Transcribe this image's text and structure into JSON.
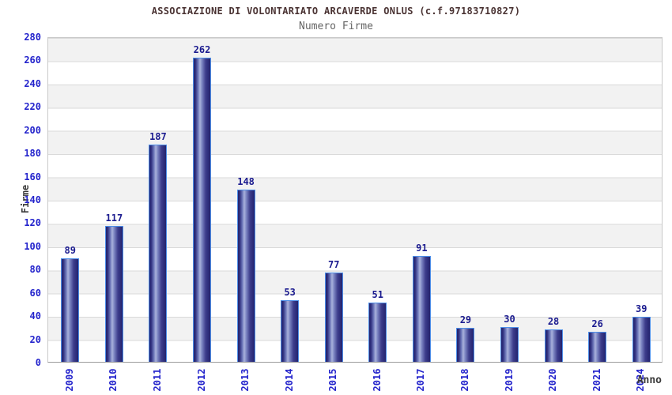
{
  "chart_data": {
    "type": "bar",
    "title": "ASSOCIAZIONE DI VOLONTARIATO ARCAVERDE ONLUS (c.f.97183710827)",
    "subtitle": "Numero Firme",
    "xlabel": "Anno",
    "ylabel": "Firme",
    "categories": [
      "2009",
      "2010",
      "2011",
      "2012",
      "2013",
      "2014",
      "2015",
      "2016",
      "2017",
      "2018",
      "2019",
      "2020",
      "2021",
      "2024"
    ],
    "values": [
      89,
      117,
      187,
      262,
      148,
      53,
      77,
      51,
      91,
      29,
      30,
      28,
      26,
      39
    ],
    "ylim": [
      0,
      280
    ],
    "ytick_step": 20,
    "grid": "horizontal-bands",
    "legend": "none",
    "value_labels_shown": true,
    "colors": {
      "title": "#4a3333",
      "subtitle": "#666666",
      "tick_labels": "#2424cc",
      "value_labels": "#1b1b8f",
      "axis_titles": "#3a3a3a",
      "bar_dark": "#23236e",
      "bar_light": "#aab2dc",
      "bar_border": "#4d8ee8",
      "band_gray": "#f2f2f2",
      "band_white": "#ffffff",
      "gridline": "#d9d9d9",
      "background": "#ffffff"
    }
  }
}
